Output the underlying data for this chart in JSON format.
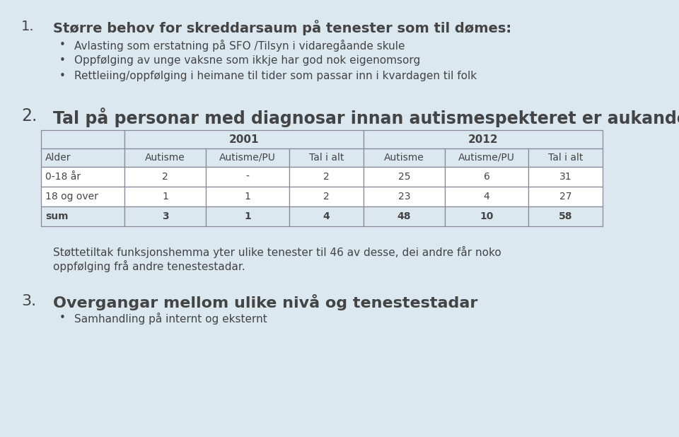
{
  "bg_color": "#dce8f0",
  "table_bg": "#ffffff",
  "table_border": "#888899",
  "text_color": "#444444",
  "title1_number": "1.",
  "title1_text": "Større behov for skreddarsaum på tenester som til dømes:",
  "bullets1": [
    "Avlasting som erstatning på SFO /Tilsyn i vidaregåande skule",
    "Oppfølging av unge vaksne som ikkje har god nok eigenomsorg",
    "Rettleiing/oppfølging i heimane til tider som passar inn i kvardagen til folk"
  ],
  "title2_number": "2.",
  "title2_text": "Tal på personar med diagnosar innan autismespekteret er aukande",
  "table_header_year1": "2001",
  "table_header_year2": "2012",
  "table_col_headers": [
    "Alder",
    "Autisme",
    "Autisme/PU",
    "Tal i alt",
    "Autisme",
    "Autisme/PU",
    "Tal i alt"
  ],
  "table_rows": [
    [
      "0-18 år",
      "2",
      "-",
      "2",
      "25",
      "6",
      "31"
    ],
    [
      "18 og over",
      "1",
      "1",
      "2",
      "23",
      "4",
      "27"
    ],
    [
      "sum",
      "3",
      "1",
      "4",
      "48",
      "10",
      "58"
    ]
  ],
  "paragraph_text": "Støttetiltak funksjonshemma yter ulike tenester til 46 av desse, dei andre får noko\noppfølging frå andre tenestestadar.",
  "title3_number": "3.",
  "title3_text": "Overgangar mellom ulike nivå og tenestestadar",
  "bullets3": [
    "Samhandling på internt og eksternt"
  ],
  "title1_fontsize": 14,
  "title2_fontsize": 17,
  "title3_fontsize": 16,
  "bullet_fontsize": 11,
  "table_fontsize": 10,
  "para_fontsize": 11,
  "number_indent": 30,
  "text_indent": 75,
  "bullet_dot_indent": 88,
  "bullet_text_indent": 105
}
